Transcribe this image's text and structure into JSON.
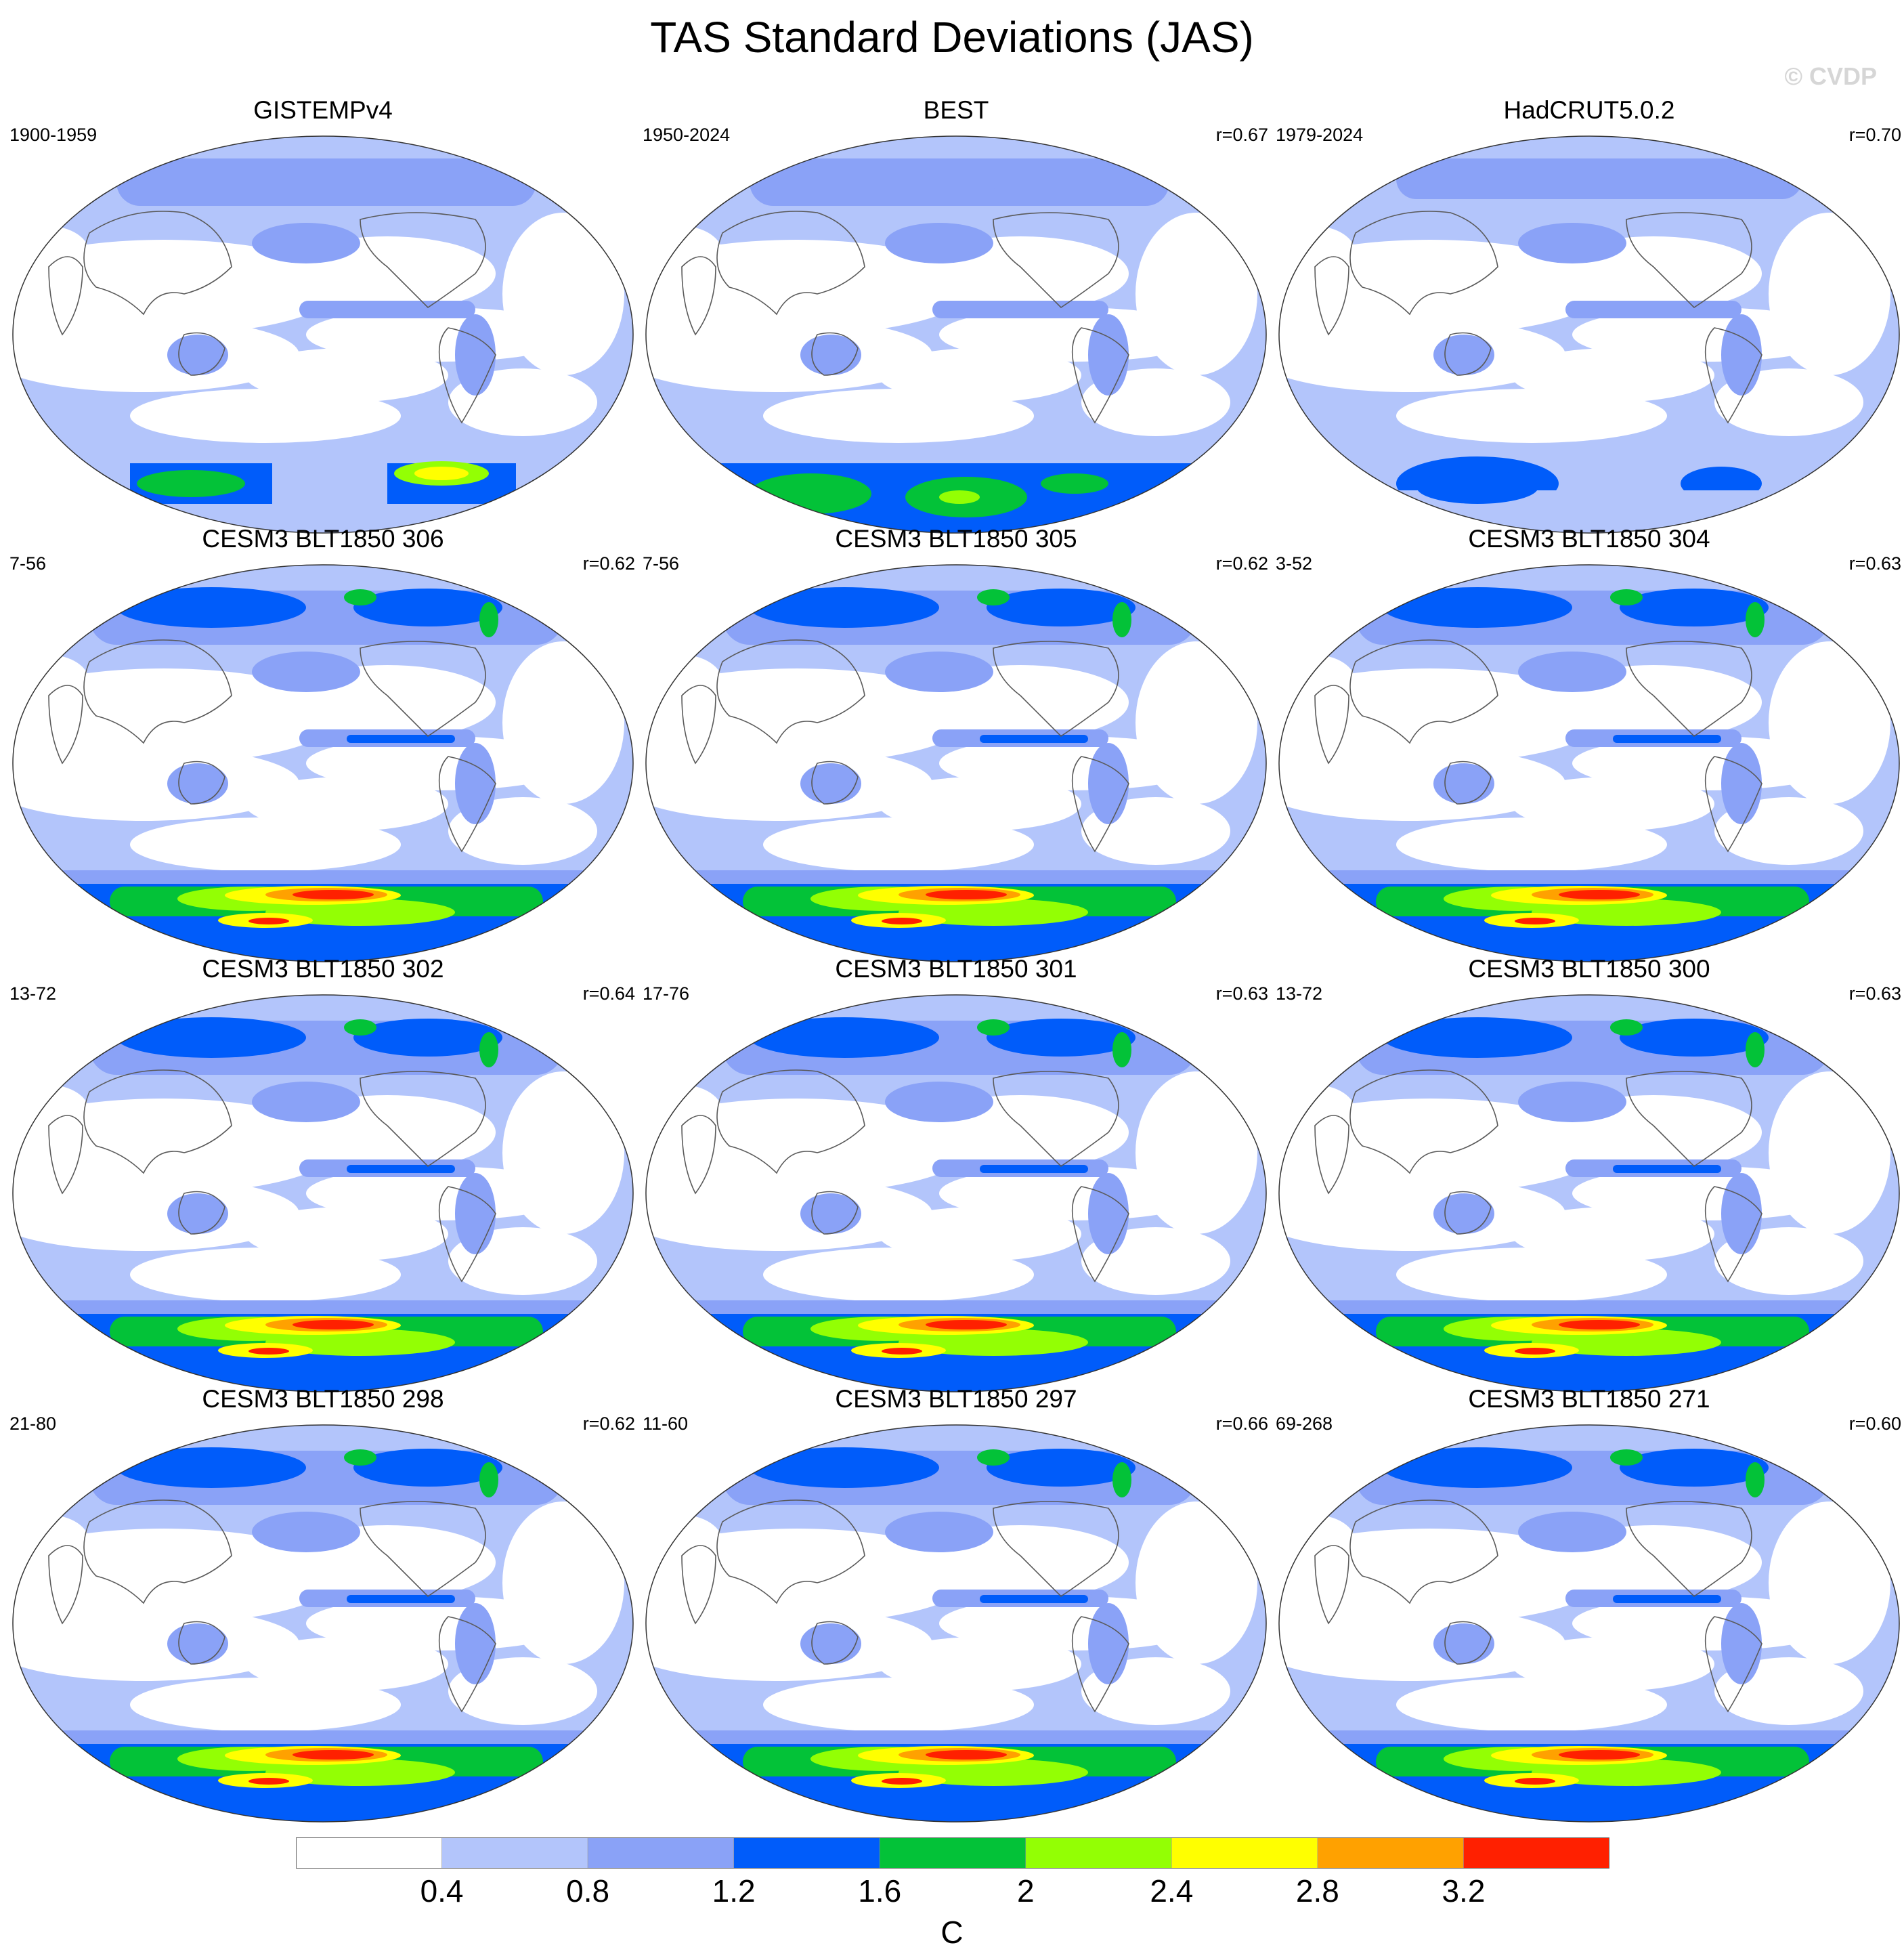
{
  "figure": {
    "title": "TAS Standard Deviations (JAS)",
    "credit": "© CVDP"
  },
  "panels": [
    {
      "title": "GISTEMPv4",
      "period": "1900-1959",
      "corr": "",
      "kind": "obs-gis"
    },
    {
      "title": "BEST",
      "period": "1950-2024",
      "corr": "r=0.67",
      "kind": "obs-best"
    },
    {
      "title": "HadCRUT5.0.2",
      "period": "1979-2024",
      "corr": "r=0.70",
      "kind": "obs-had"
    },
    {
      "title": "CESM3 BLT1850 306",
      "period": "7-56",
      "corr": "r=0.62",
      "kind": "model"
    },
    {
      "title": "CESM3 BLT1850 305",
      "period": "7-56",
      "corr": "r=0.62",
      "kind": "model"
    },
    {
      "title": "CESM3 BLT1850 304",
      "period": "3-52",
      "corr": "r=0.63",
      "kind": "model"
    },
    {
      "title": "CESM3 BLT1850 302",
      "period": "13-72",
      "corr": "r=0.64",
      "kind": "model"
    },
    {
      "title": "CESM3 BLT1850 301",
      "period": "17-76",
      "corr": "r=0.63",
      "kind": "model"
    },
    {
      "title": "CESM3 BLT1850 300",
      "period": "13-72",
      "corr": "r=0.63",
      "kind": "model"
    },
    {
      "title": "CESM3 BLT1850 298",
      "period": "21-80",
      "corr": "r=0.62",
      "kind": "model"
    },
    {
      "title": "CESM3 BLT1850 297",
      "period": "11-60",
      "corr": "r=0.66",
      "kind": "model"
    },
    {
      "title": "CESM3 BLT1850 271",
      "period": "69-268",
      "corr": "r=0.60",
      "kind": "model"
    }
  ],
  "colorbar": {
    "unit": "C",
    "ticks": [
      "0.4",
      "0.8",
      "1.2",
      "1.6",
      "2",
      "2.4",
      "2.8",
      "3.2"
    ],
    "colors": [
      "#ffffff",
      "#b3c5fb",
      "#8aa2f7",
      "#005cfa",
      "#03c238",
      "#93ff04",
      "#ffff00",
      "#ffa100",
      "#ff2000"
    ]
  }
}
